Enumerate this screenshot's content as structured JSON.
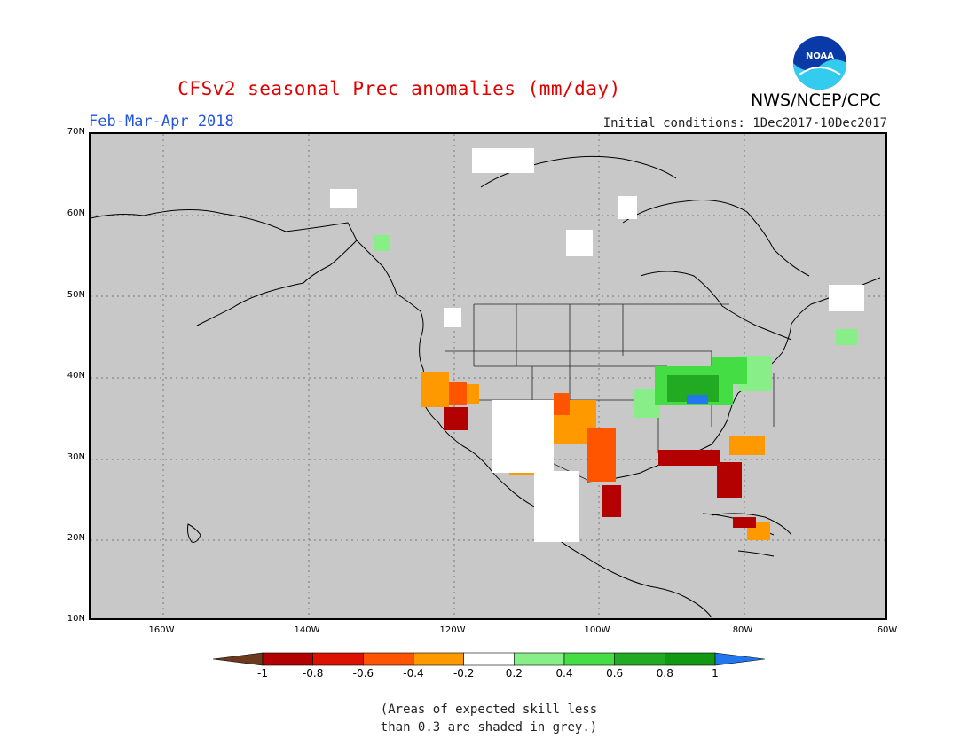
{
  "title": "CFSv2 seasonal Prec anomalies (mm/day)",
  "season": "Feb-Mar-Apr 2018",
  "initial_conditions": "Initial conditions: 1Dec2017-10Dec2017",
  "agency": "NWS/NCEP/CPC",
  "logo_text": "NOAA",
  "lat_labels": [
    "70N",
    "60N",
    "50N",
    "40N",
    "30N",
    "20N",
    "10N"
  ],
  "lon_labels": [
    "160W",
    "140W",
    "120W",
    "100W",
    "80W",
    "60W"
  ],
  "colorbar": {
    "labels": [
      "-1",
      "-0.8",
      "-0.6",
      "-0.4",
      "-0.2",
      "0.2",
      "0.4",
      "0.6",
      "0.8",
      "1"
    ],
    "colors": [
      "#6b3a1f",
      "#b30000",
      "#dd1100",
      "#ff5500",
      "#ff9900",
      "#ffffff",
      "#88ee88",
      "#44dd44",
      "#22aa22",
      "#119911",
      "#2277ee"
    ]
  },
  "note_lines": [
    "(Areas of expected skill less",
    "than 0.3 are shaded in grey.)"
  ],
  "colors": {
    "title": "#e00000",
    "season": "#2255dd",
    "grey_skill_mask": "#c8c8c8"
  }
}
